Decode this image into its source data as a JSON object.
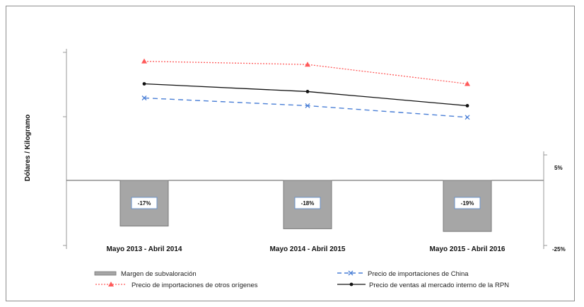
{
  "chart_data": {
    "type": "line",
    "title": "",
    "ylabel": "Dólares / Kilogramo",
    "categories": [
      "Mayo 2013 - Abril 2014",
      "Mayo 2014 - Abril 2015",
      "Mayo 2015 - Abril 2016"
    ],
    "series": [
      {
        "name": "Precio de  importaciones de otros orígenes",
        "type": "line",
        "color": "#ff5a5a",
        "dash": "dotted",
        "marker": "triangle",
        "values": [
          1.85,
          1.8,
          1.5
        ]
      },
      {
        "name": "Precio de ventas al mercado interno de la RPN",
        "type": "line",
        "color": "#111111",
        "dash": "solid",
        "marker": "dot",
        "values": [
          1.5,
          1.38,
          1.16
        ]
      },
      {
        "name": "Precio de importaciones de China",
        "type": "line",
        "color": "#4a7fd6",
        "dash": "dashed",
        "marker": "x",
        "values": [
          1.28,
          1.16,
          0.98
        ]
      }
    ],
    "bar_series": {
      "name": "Margen de subvaloración",
      "type": "bar",
      "axis": "secondary",
      "color": "#a6a6a6",
      "values": [
        -17,
        -18,
        -19
      ],
      "labels": [
        "-17%",
        "-18%",
        "-19%"
      ]
    },
    "secondary_axis": {
      "ticks": [
        "5%",
        "-25%"
      ],
      "unit": "%"
    },
    "legend": {
      "position": "bottom",
      "entries": [
        "Margen de subvaloración",
        "Precio de importaciones de China",
        "Precio de  importaciones de otros orígenes",
        "Precio de ventas al mercado interno de la RPN"
      ]
    }
  }
}
